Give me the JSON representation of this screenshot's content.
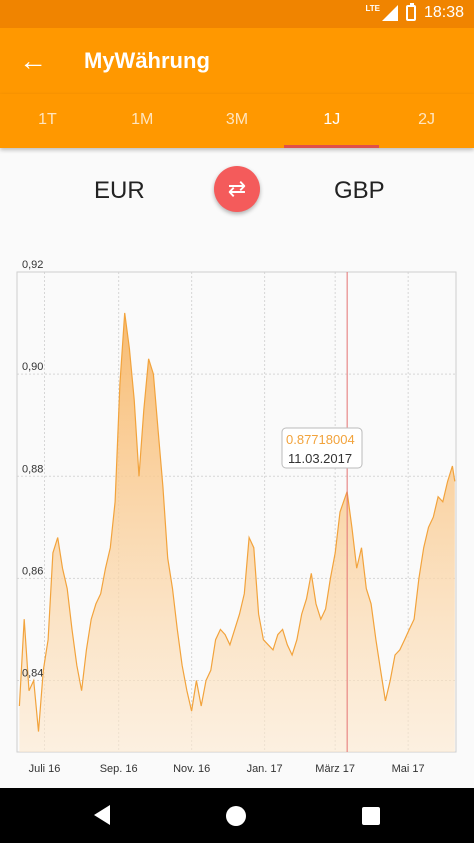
{
  "status": {
    "time": "18:38",
    "network": "LTE"
  },
  "appbar": {
    "title": "MyWährung"
  },
  "tabs": [
    "1T",
    "1M",
    "3M",
    "1J",
    "2J"
  ],
  "active_tab": "1J",
  "currencies": {
    "from": "EUR",
    "to": "GBP"
  },
  "tooltip": {
    "value": "0.87718004",
    "date": "11.03.2017"
  },
  "colors": {
    "accent": "#ff9800",
    "statusbar": "#f08400",
    "swap": "#f45b5b",
    "line": "#f2a33c",
    "marker": "#e57373"
  },
  "chart_data": {
    "type": "area",
    "y_ticks": [
      "0,92",
      "0,90",
      "0,88",
      "0,86",
      "0,84"
    ],
    "x_ticks": [
      "Juli 16",
      "Sep. 16",
      "Nov. 16",
      "Jan. 17",
      "März 17",
      "Mai 17"
    ],
    "ylim": [
      0.826,
      0.92
    ],
    "grid": true,
    "series": [
      {
        "points": [
          [
            "2016-06-10",
            0.835
          ],
          [
            "2016-06-14",
            0.852
          ],
          [
            "2016-06-18",
            0.838
          ],
          [
            "2016-06-22",
            0.84
          ],
          [
            "2016-06-26",
            0.83
          ],
          [
            "2016-06-30",
            0.842
          ],
          [
            "2016-07-04",
            0.848
          ],
          [
            "2016-07-08",
            0.865
          ],
          [
            "2016-07-12",
            0.868
          ],
          [
            "2016-07-16",
            0.862
          ],
          [
            "2016-07-20",
            0.858
          ],
          [
            "2016-07-24",
            0.85
          ],
          [
            "2016-07-28",
            0.843
          ],
          [
            "2016-08-01",
            0.838
          ],
          [
            "2016-08-05",
            0.846
          ],
          [
            "2016-08-09",
            0.852
          ],
          [
            "2016-08-13",
            0.855
          ],
          [
            "2016-08-17",
            0.857
          ],
          [
            "2016-08-21",
            0.862
          ],
          [
            "2016-08-25",
            0.866
          ],
          [
            "2016-08-29",
            0.875
          ],
          [
            "2016-09-02",
            0.898
          ],
          [
            "2016-09-06",
            0.912
          ],
          [
            "2016-09-10",
            0.905
          ],
          [
            "2016-09-14",
            0.895
          ],
          [
            "2016-09-18",
            0.88
          ],
          [
            "2016-09-22",
            0.893
          ],
          [
            "2016-09-26",
            0.903
          ],
          [
            "2016-09-30",
            0.9
          ],
          [
            "2016-10-04",
            0.889
          ],
          [
            "2016-10-08",
            0.878
          ],
          [
            "2016-10-12",
            0.864
          ],
          [
            "2016-10-16",
            0.858
          ],
          [
            "2016-10-20",
            0.85
          ],
          [
            "2016-10-24",
            0.843
          ],
          [
            "2016-10-28",
            0.838
          ],
          [
            "2016-11-01",
            0.834
          ],
          [
            "2016-11-05",
            0.84
          ],
          [
            "2016-11-09",
            0.835
          ],
          [
            "2016-11-13",
            0.84
          ],
          [
            "2016-11-17",
            0.842
          ],
          [
            "2016-11-21",
            0.848
          ],
          [
            "2016-11-25",
            0.85
          ],
          [
            "2016-11-29",
            0.849
          ],
          [
            "2016-12-03",
            0.847
          ],
          [
            "2016-12-07",
            0.85
          ],
          [
            "2016-12-11",
            0.853
          ],
          [
            "2016-12-15",
            0.857
          ],
          [
            "2016-12-19",
            0.868
          ],
          [
            "2016-12-23",
            0.866
          ],
          [
            "2016-12-27",
            0.853
          ],
          [
            "2016-12-31",
            0.848
          ],
          [
            "2017-01-04",
            0.847
          ],
          [
            "2017-01-08",
            0.846
          ],
          [
            "2017-01-12",
            0.849
          ],
          [
            "2017-01-16",
            0.85
          ],
          [
            "2017-01-20",
            0.847
          ],
          [
            "2017-01-24",
            0.845
          ],
          [
            "2017-01-28",
            0.848
          ],
          [
            "2017-02-01",
            0.853
          ],
          [
            "2017-02-05",
            0.856
          ],
          [
            "2017-02-09",
            0.861
          ],
          [
            "2017-02-13",
            0.855
          ],
          [
            "2017-02-17",
            0.852
          ],
          [
            "2017-02-21",
            0.854
          ],
          [
            "2017-02-25",
            0.86
          ],
          [
            "2017-03-01",
            0.865
          ],
          [
            "2017-03-05",
            0.873
          ],
          [
            "2017-03-11",
            0.877
          ],
          [
            "2017-03-15",
            0.87
          ],
          [
            "2017-03-19",
            0.862
          ],
          [
            "2017-03-23",
            0.866
          ],
          [
            "2017-03-27",
            0.858
          ],
          [
            "2017-03-31",
            0.855
          ],
          [
            "2017-04-04",
            0.848
          ],
          [
            "2017-04-08",
            0.842
          ],
          [
            "2017-04-12",
            0.836
          ],
          [
            "2017-04-16",
            0.84
          ],
          [
            "2017-04-20",
            0.845
          ],
          [
            "2017-04-24",
            0.846
          ],
          [
            "2017-04-28",
            0.848
          ],
          [
            "2017-05-02",
            0.85
          ],
          [
            "2017-05-06",
            0.852
          ],
          [
            "2017-05-10",
            0.86
          ],
          [
            "2017-05-14",
            0.866
          ],
          [
            "2017-05-18",
            0.87
          ],
          [
            "2017-05-22",
            0.872
          ],
          [
            "2017-05-26",
            0.876
          ],
          [
            "2017-05-30",
            0.875
          ],
          [
            "2017-06-03",
            0.879
          ],
          [
            "2017-06-07",
            0.882
          ],
          [
            "2017-06-09",
            0.879
          ]
        ]
      }
    ]
  }
}
